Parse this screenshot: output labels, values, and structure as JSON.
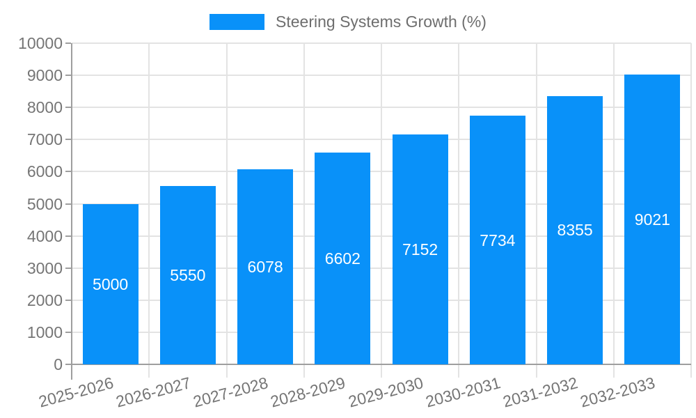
{
  "legend": {
    "label": "Steering Systems Growth (%)"
  },
  "chart_data": {
    "type": "bar",
    "title": "",
    "xlabel": "",
    "ylabel": "",
    "categories": [
      "2025-2026",
      "2026-2027",
      "2027-2028",
      "2028-2029",
      "2029-2030",
      "2030-2031",
      "2031-2032",
      "2032-2033"
    ],
    "series": [
      {
        "name": "Steering Systems Growth (%)",
        "values": [
          5000,
          5550,
          6078,
          6602,
          7152,
          7734,
          8355,
          9021
        ]
      }
    ],
    "data_labels_shown": true,
    "ylim": [
      0,
      10000
    ],
    "ytick_step": 1000,
    "grid": true,
    "legend_position": "top-center",
    "x_label_rotation_deg": -15,
    "bar_color": "#0991f9",
    "bar_label_color": "#ffffff",
    "grid_color": "#e3e3e3",
    "axis_color": "#9e9e9e",
    "tick_label_color": "#757575"
  }
}
